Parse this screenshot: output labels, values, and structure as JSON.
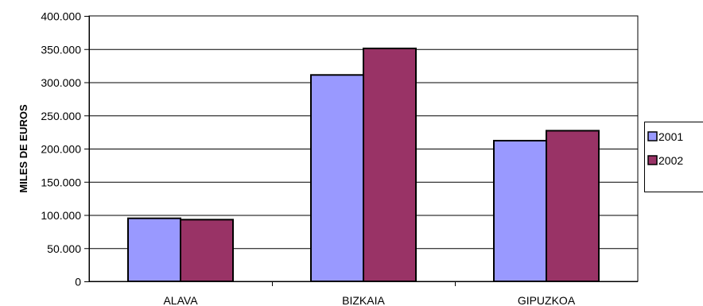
{
  "chart_data": {
    "type": "bar",
    "categories": [
      "ALAVA",
      "BIZKAIA",
      "GIPUZKOA"
    ],
    "series": [
      {
        "name": "2001",
        "values": [
          95000,
          311000,
          212000
        ],
        "color": "#9999ff"
      },
      {
        "name": "2002",
        "values": [
          93000,
          351000,
          227000
        ],
        "color": "#993366"
      }
    ],
    "title": "",
    "xlabel": "",
    "ylabel": "MILES DE EUROS",
    "ylim": [
      0,
      400000
    ],
    "yticks": [
      0,
      50000,
      100000,
      150000,
      200000,
      250000,
      300000,
      350000,
      400000
    ],
    "ytick_labels": [
      "0",
      "50.000",
      "100.000",
      "150.000",
      "200.000",
      "250.000",
      "300.000",
      "350.000",
      "400.000"
    ],
    "grid": true,
    "legend_position": "right"
  }
}
